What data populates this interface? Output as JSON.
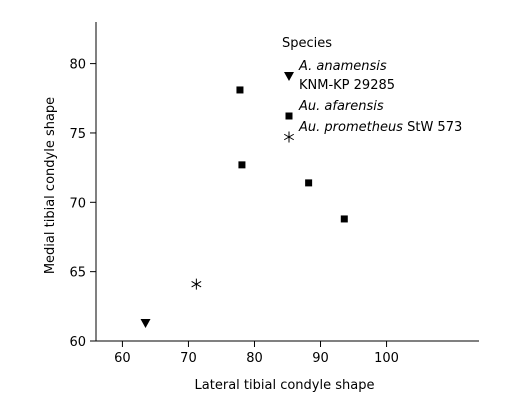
{
  "chart_data": {
    "type": "scatter",
    "xlabel": "Lateral tibial condyle shape",
    "ylabel": "Medial tibial condyle shape",
    "xlim": [
      56,
      114
    ],
    "ylim": [
      60,
      83
    ],
    "xticks": [
      60,
      70,
      80,
      90,
      100
    ],
    "yticks": [
      60,
      65,
      70,
      75,
      80
    ],
    "grid": false,
    "legend_position": "top-right",
    "legend_title": "Species",
    "series": [
      {
        "name_italic": "A. anamensis",
        "name_rest": "",
        "name_line2": "KNM-KP 29285",
        "marker": "triangle-down",
        "points": [
          {
            "x": 63.5,
            "y": 61.3
          }
        ]
      },
      {
        "name_italic": "Au. afarensis",
        "name_rest": "",
        "name_line2": "",
        "marker": "square",
        "points": [
          {
            "x": 77.8,
            "y": 78.1
          },
          {
            "x": 78.1,
            "y": 72.7
          },
          {
            "x": 88.2,
            "y": 71.4
          },
          {
            "x": 93.6,
            "y": 68.8
          }
        ]
      },
      {
        "name_italic": "Au. prometheus",
        "name_rest": " StW 573",
        "name_line2": "",
        "marker": "star",
        "points": [
          {
            "x": 71.2,
            "y": 64.1
          }
        ]
      }
    ]
  }
}
